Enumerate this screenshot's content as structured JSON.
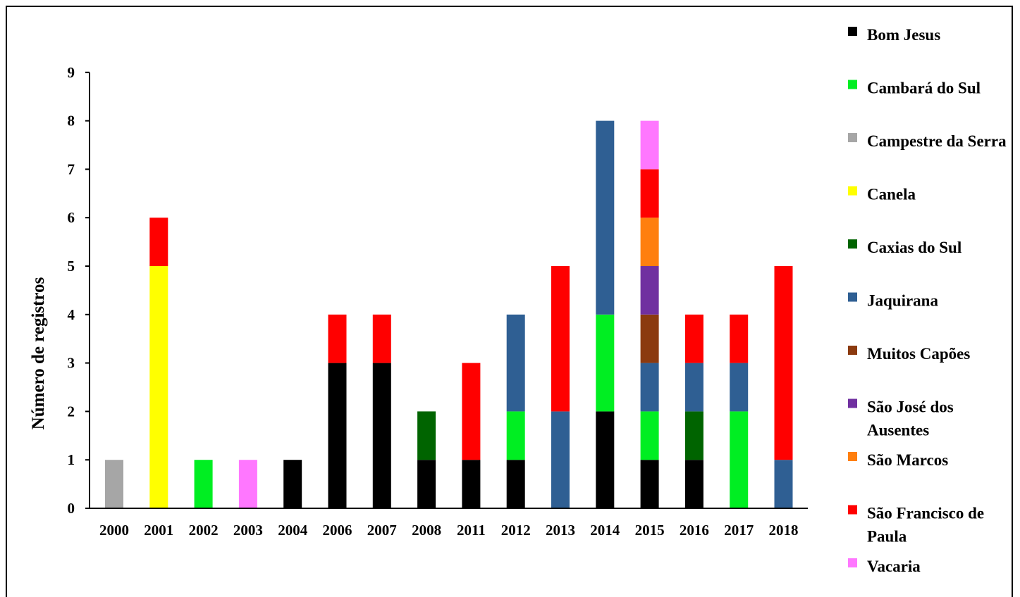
{
  "chart_data": {
    "type": "bar",
    "stacked": true,
    "title": "",
    "xlabel": "",
    "ylabel": "Número de registros",
    "ylim": [
      0,
      9
    ],
    "yticks": [
      "0",
      "1",
      "2",
      "3",
      "4",
      "5",
      "6",
      "7",
      "8",
      "9"
    ],
    "grid": false,
    "legend_position": "right",
    "categories": [
      "2000",
      "2001",
      "2002",
      "2003",
      "2004",
      "2006",
      "2007",
      "2008",
      "2011",
      "2012",
      "2013",
      "2014",
      "2015",
      "2016",
      "2017",
      "2018"
    ],
    "series": [
      {
        "name": "Bom Jesus",
        "color": "#000000",
        "values": [
          0,
          0,
          0,
          0,
          1,
          3,
          3,
          1,
          1,
          1,
          0,
          2,
          1,
          1,
          0,
          0
        ]
      },
      {
        "name": "Cambará do Sul",
        "color": "#00ee22",
        "values": [
          0,
          0,
          1,
          0,
          0,
          0,
          0,
          0,
          0,
          1,
          0,
          2,
          1,
          0,
          2,
          0
        ]
      },
      {
        "name": "Campestre da Serra",
        "color": "#a6a6a6",
        "values": [
          1,
          0,
          0,
          0,
          0,
          0,
          0,
          0,
          0,
          0,
          0,
          0,
          0,
          0,
          0,
          0
        ]
      },
      {
        "name": "Canela",
        "color": "#ffff00",
        "values": [
          0,
          5,
          0,
          0,
          0,
          0,
          0,
          0,
          0,
          0,
          0,
          0,
          0,
          0,
          0,
          0
        ]
      },
      {
        "name": "Caxias do Sul",
        "color": "#006400",
        "values": [
          0,
          0,
          0,
          0,
          0,
          0,
          0,
          1,
          0,
          0,
          0,
          0,
          0,
          1,
          0,
          0
        ]
      },
      {
        "name": "Jaquirana",
        "color": "#2f5f93",
        "values": [
          0,
          0,
          0,
          0,
          0,
          0,
          0,
          0,
          0,
          2,
          2,
          4,
          1,
          1,
          1,
          1
        ]
      },
      {
        "name": "Muitos Capões",
        "color": "#8b3a0f",
        "values": [
          0,
          0,
          0,
          0,
          0,
          0,
          0,
          0,
          0,
          0,
          0,
          0,
          1,
          0,
          0,
          0
        ]
      },
      {
        "name": "São José dos Ausentes",
        "color": "#7030a0",
        "values": [
          0,
          0,
          0,
          0,
          0,
          0,
          0,
          0,
          0,
          0,
          0,
          0,
          1,
          0,
          0,
          0
        ]
      },
      {
        "name": "São Marcos",
        "color": "#ff7f0e",
        "values": [
          0,
          0,
          0,
          0,
          0,
          0,
          0,
          0,
          0,
          0,
          0,
          0,
          1,
          0,
          0,
          0
        ]
      },
      {
        "name": "São Francisco de Paula",
        "color": "#ff0000",
        "values": [
          0,
          1,
          0,
          0,
          0,
          1,
          1,
          0,
          2,
          0,
          3,
          0,
          1,
          1,
          1,
          4
        ]
      },
      {
        "name": "Vacaria",
        "color": "#ff77ff",
        "values": [
          0,
          0,
          0,
          1,
          0,
          0,
          0,
          0,
          0,
          0,
          0,
          0,
          1,
          0,
          0,
          0
        ]
      }
    ]
  }
}
